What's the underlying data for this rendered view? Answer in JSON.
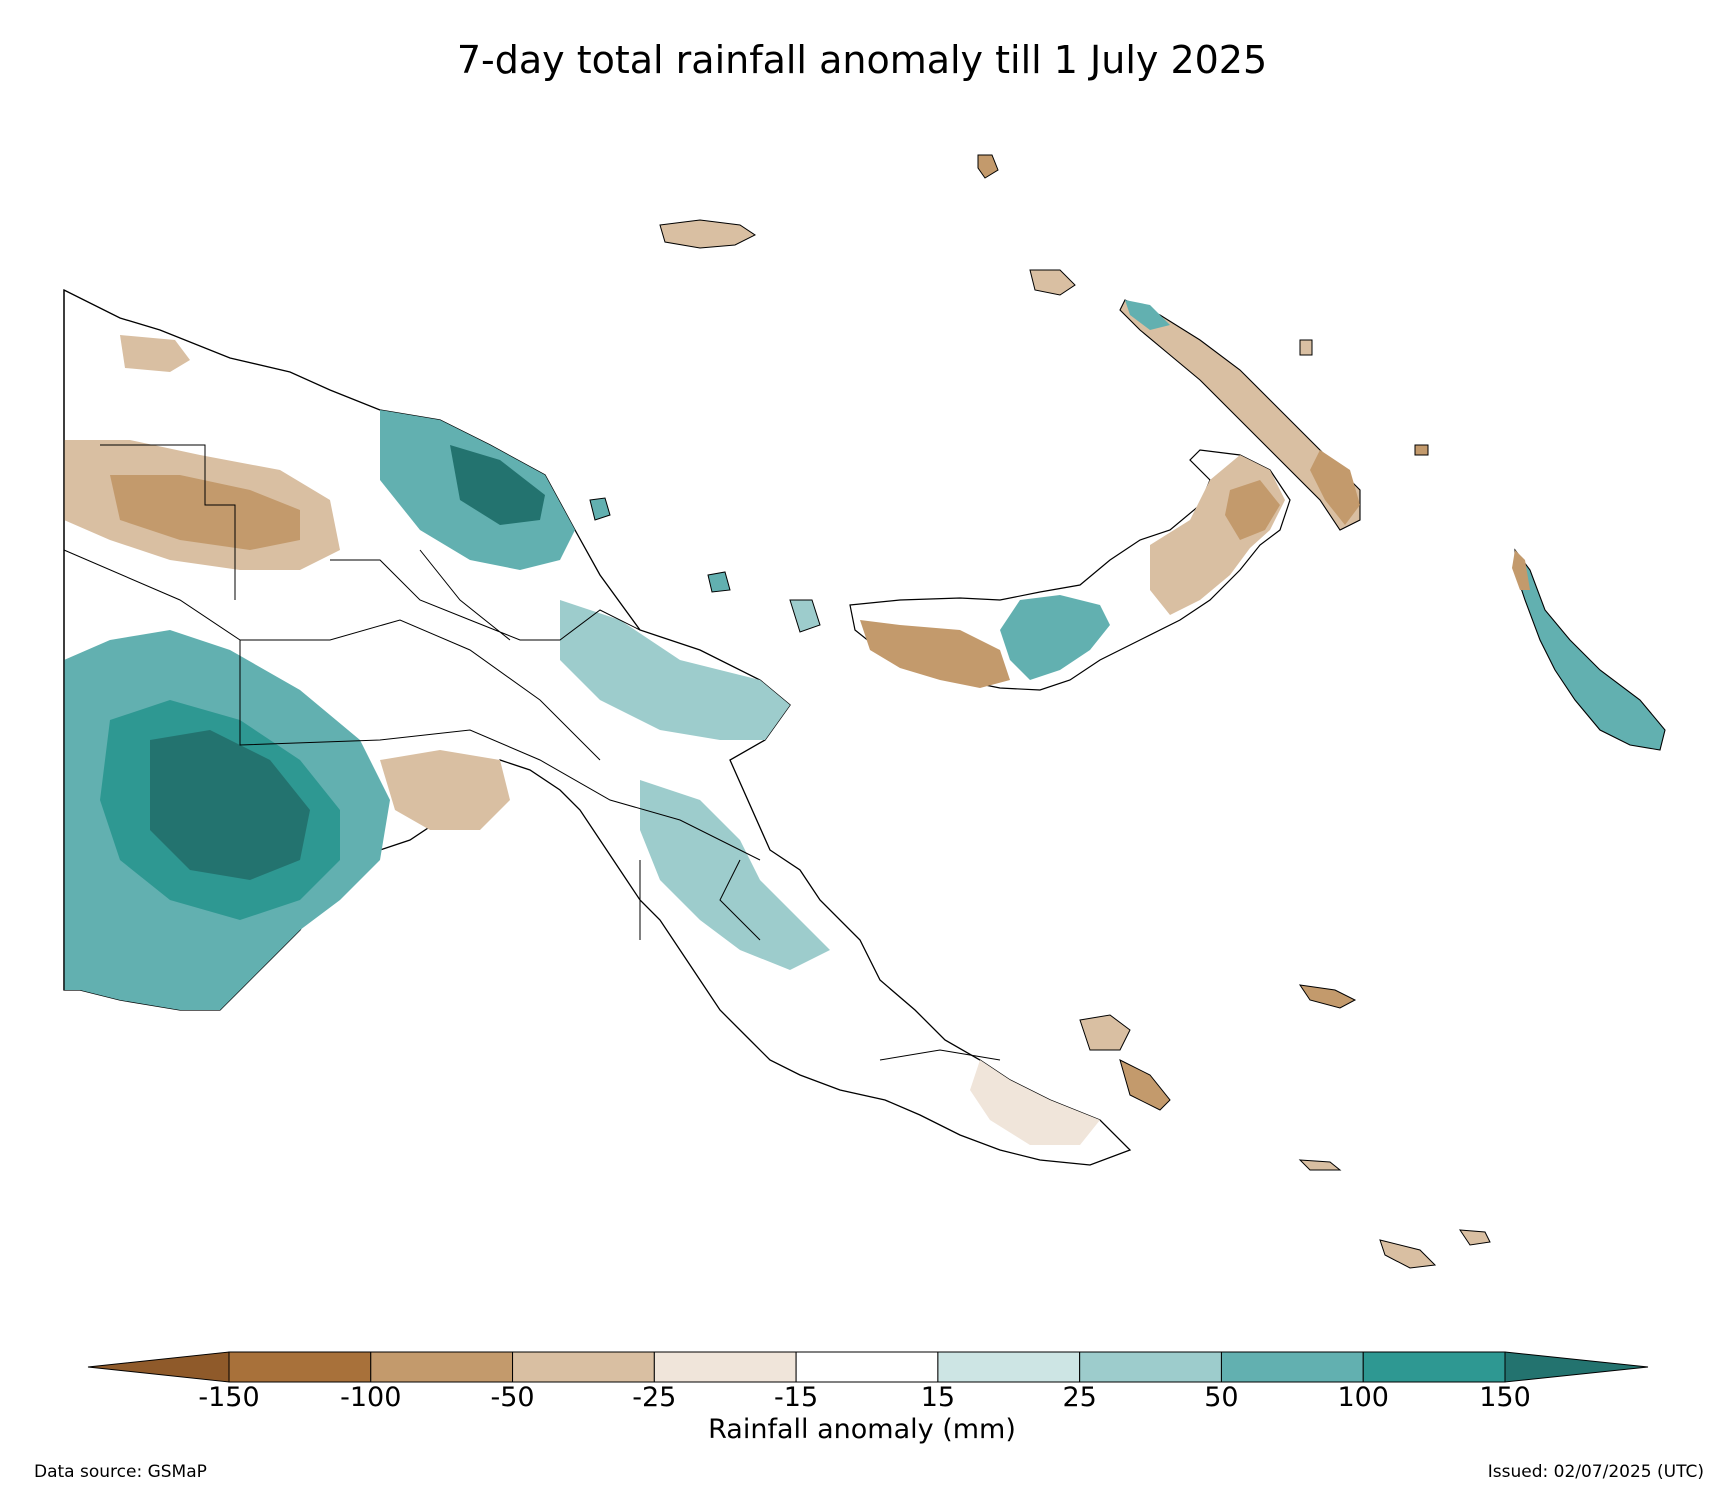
{
  "title": "7-day total rainfall anomaly till 1 July 2025",
  "colorbar": {
    "label": "Rainfall anomaly (mm)",
    "ticks": [
      "-150",
      "-100",
      "-50",
      "-25",
      "-15",
      "15",
      "25",
      "50",
      "100",
      "150"
    ],
    "colors": {
      "below_min": "#8f5a2a",
      "bins": [
        "#a8713a",
        "#c39a6c",
        "#d9bfa2",
        "#f0e5da",
        "#ffffff",
        "#cde5e4",
        "#9dcccc",
        "#62b0b0",
        "#2e9892"
      ],
      "above_max": "#23736f"
    }
  },
  "footer": {
    "source": "Data source: GSMaP",
    "issued": "Issued: 02/07/2025 (UTC)"
  }
}
